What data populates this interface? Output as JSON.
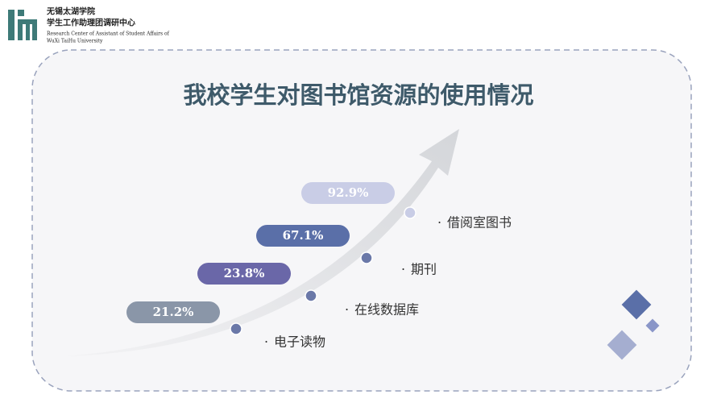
{
  "header": {
    "org": "无锡太湖学院",
    "unit": "学生工作助理团调研中心",
    "english_1": "Research Center of Assistant of Student Affairs of",
    "english_2": "WuXi TaiHu University"
  },
  "title": "我校学生对图书馆资源的使用情况",
  "items": [
    {
      "label": "电子读物",
      "value": "21.2%"
    },
    {
      "label": "在线数据库",
      "value": "23.8%"
    },
    {
      "label": "期刊",
      "value": "67.1%"
    },
    {
      "label": "借阅室图书",
      "value": "92.9%"
    }
  ]
}
